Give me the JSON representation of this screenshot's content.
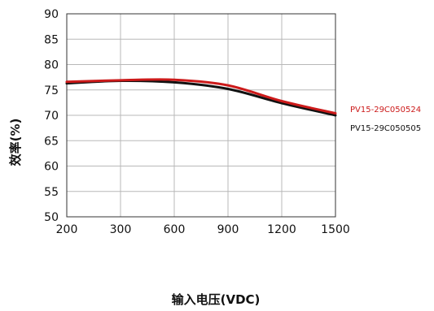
{
  "chart_data": {
    "type": "line",
    "xlabel": "输入电压(VDC)",
    "ylabel": "效率(%)",
    "categories": [
      "200",
      "300",
      "600",
      "900",
      "1200",
      "1500"
    ],
    "ylim": [
      50,
      90
    ],
    "yticks": [
      50,
      55,
      60,
      65,
      70,
      75,
      80,
      85,
      90
    ],
    "grid": true,
    "legend_position": "right",
    "series": [
      {
        "name": "PV15-29C050524",
        "color": "#cc1a1a",
        "values": [
          76.6,
          76.9,
          77.0,
          75.9,
          72.8,
          70.4
        ]
      },
      {
        "name": "PV15-29C050505",
        "color": "#111111",
        "values": [
          76.3,
          76.8,
          76.5,
          75.2,
          72.4,
          70.0
        ]
      }
    ]
  }
}
